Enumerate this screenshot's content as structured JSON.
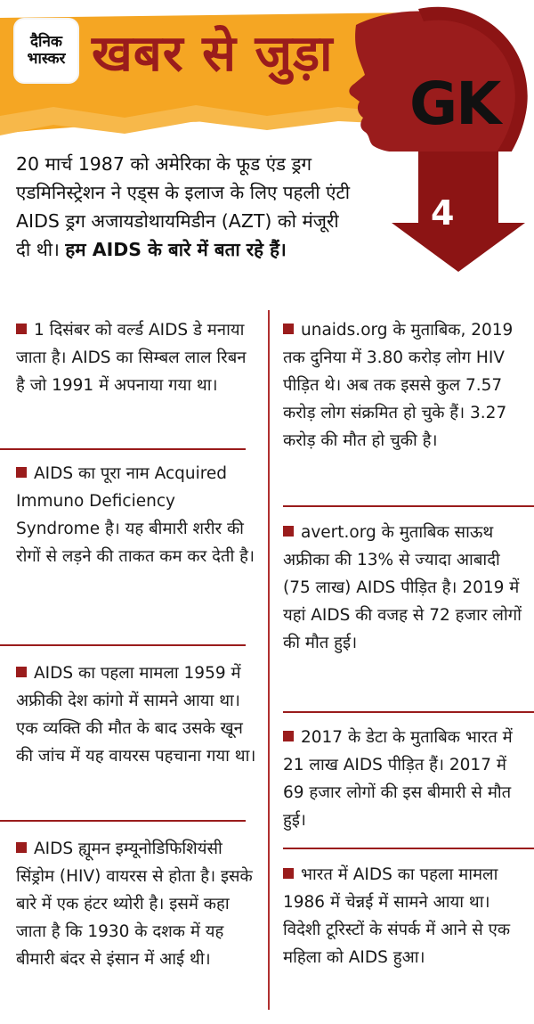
{
  "header": {
    "logo_line1": "दैनिक",
    "logo_line2": "भास्कर",
    "title": "खबर से जुड़ा",
    "gk_label": "GK",
    "number": "4"
  },
  "intro": {
    "text": "20 मार्च 1987 को अमेरिका के फूड एंड ड्रग एडमिनिस्ट्रेशन ने एड्स के इलाज के लिए पहली एंटी AIDS ड्रग अजायडोथायमिडीन (AZT) को मंजूरी दी थी।",
    "bold_text": "हम AIDS के बारे में बता रहे हैं।"
  },
  "left_items": [
    "1 दिसंबर को वर्ल्ड AIDS डे मनाया जाता है। AIDS का सिम्बल लाल रिबन है जो 1991 में अपनाया गया था।",
    "AIDS का पूरा नाम Acquired Immuno Deficiency Syndrome है। यह बीमारी शरीर की रोगों से लड़ने की ताकत कम कर देती है।",
    "AIDS का पहला मामला 1959 में अफ्रीकी देश कांगो में सामने आया था। एक व्यक्ति की मौत के बाद उसके खून की जांच में यह वायरस पहचाना गया था।",
    "AIDS ह्यूमन इम्यूनोडिफिशियंसी सिंड्रोम (HIV) वायरस से होता है। इसके बारे में एक हंटर थ्योरी है। इसमें कहा जाता है कि 1930 के दशक में यह बीमारी बंदर से इंसान में आई थी।"
  ],
  "right_items": [
    "unaids.org के मुताबिक, 2019 तक दुनिया में 3.80 करोड़ लोग HIV पीड़ित थे। अब तक इससे कुल 7.57 करोड़ लोग संक्रमित हो चुके हैं। 3.27 करोड़ की मौत हो चुकी है।",
    "avert.org के मुताबिक साऊथ अफ्रीका की 13% से ज्यादा आबादी (75 लाख) AIDS पीड़ित है। 2019 में यहां AIDS की वजह से 72 हजार लोगों की मौत हुई।",
    "2017 के डेटा के मुताबिक भारत में 21 लाख AIDS पीड़ित हैं। 2017 में 69 हजार लोगों की इस बीमारी से मौत हुई।",
    "भारत में AIDS का पहला मामला 1986 में चेन्नई में सामने आया था। विदेशी टूरिस्टों के संपर्क में आने से एक महिला को AIDS हुआ।"
  ],
  "colors": {
    "accent": "#9a1c1c",
    "header_orange": "#f5a623",
    "text": "#1a1a1a"
  },
  "icons": [
    "head-silhouette-icon",
    "circular-arrow-icon",
    "bullet-square-icon"
  ]
}
